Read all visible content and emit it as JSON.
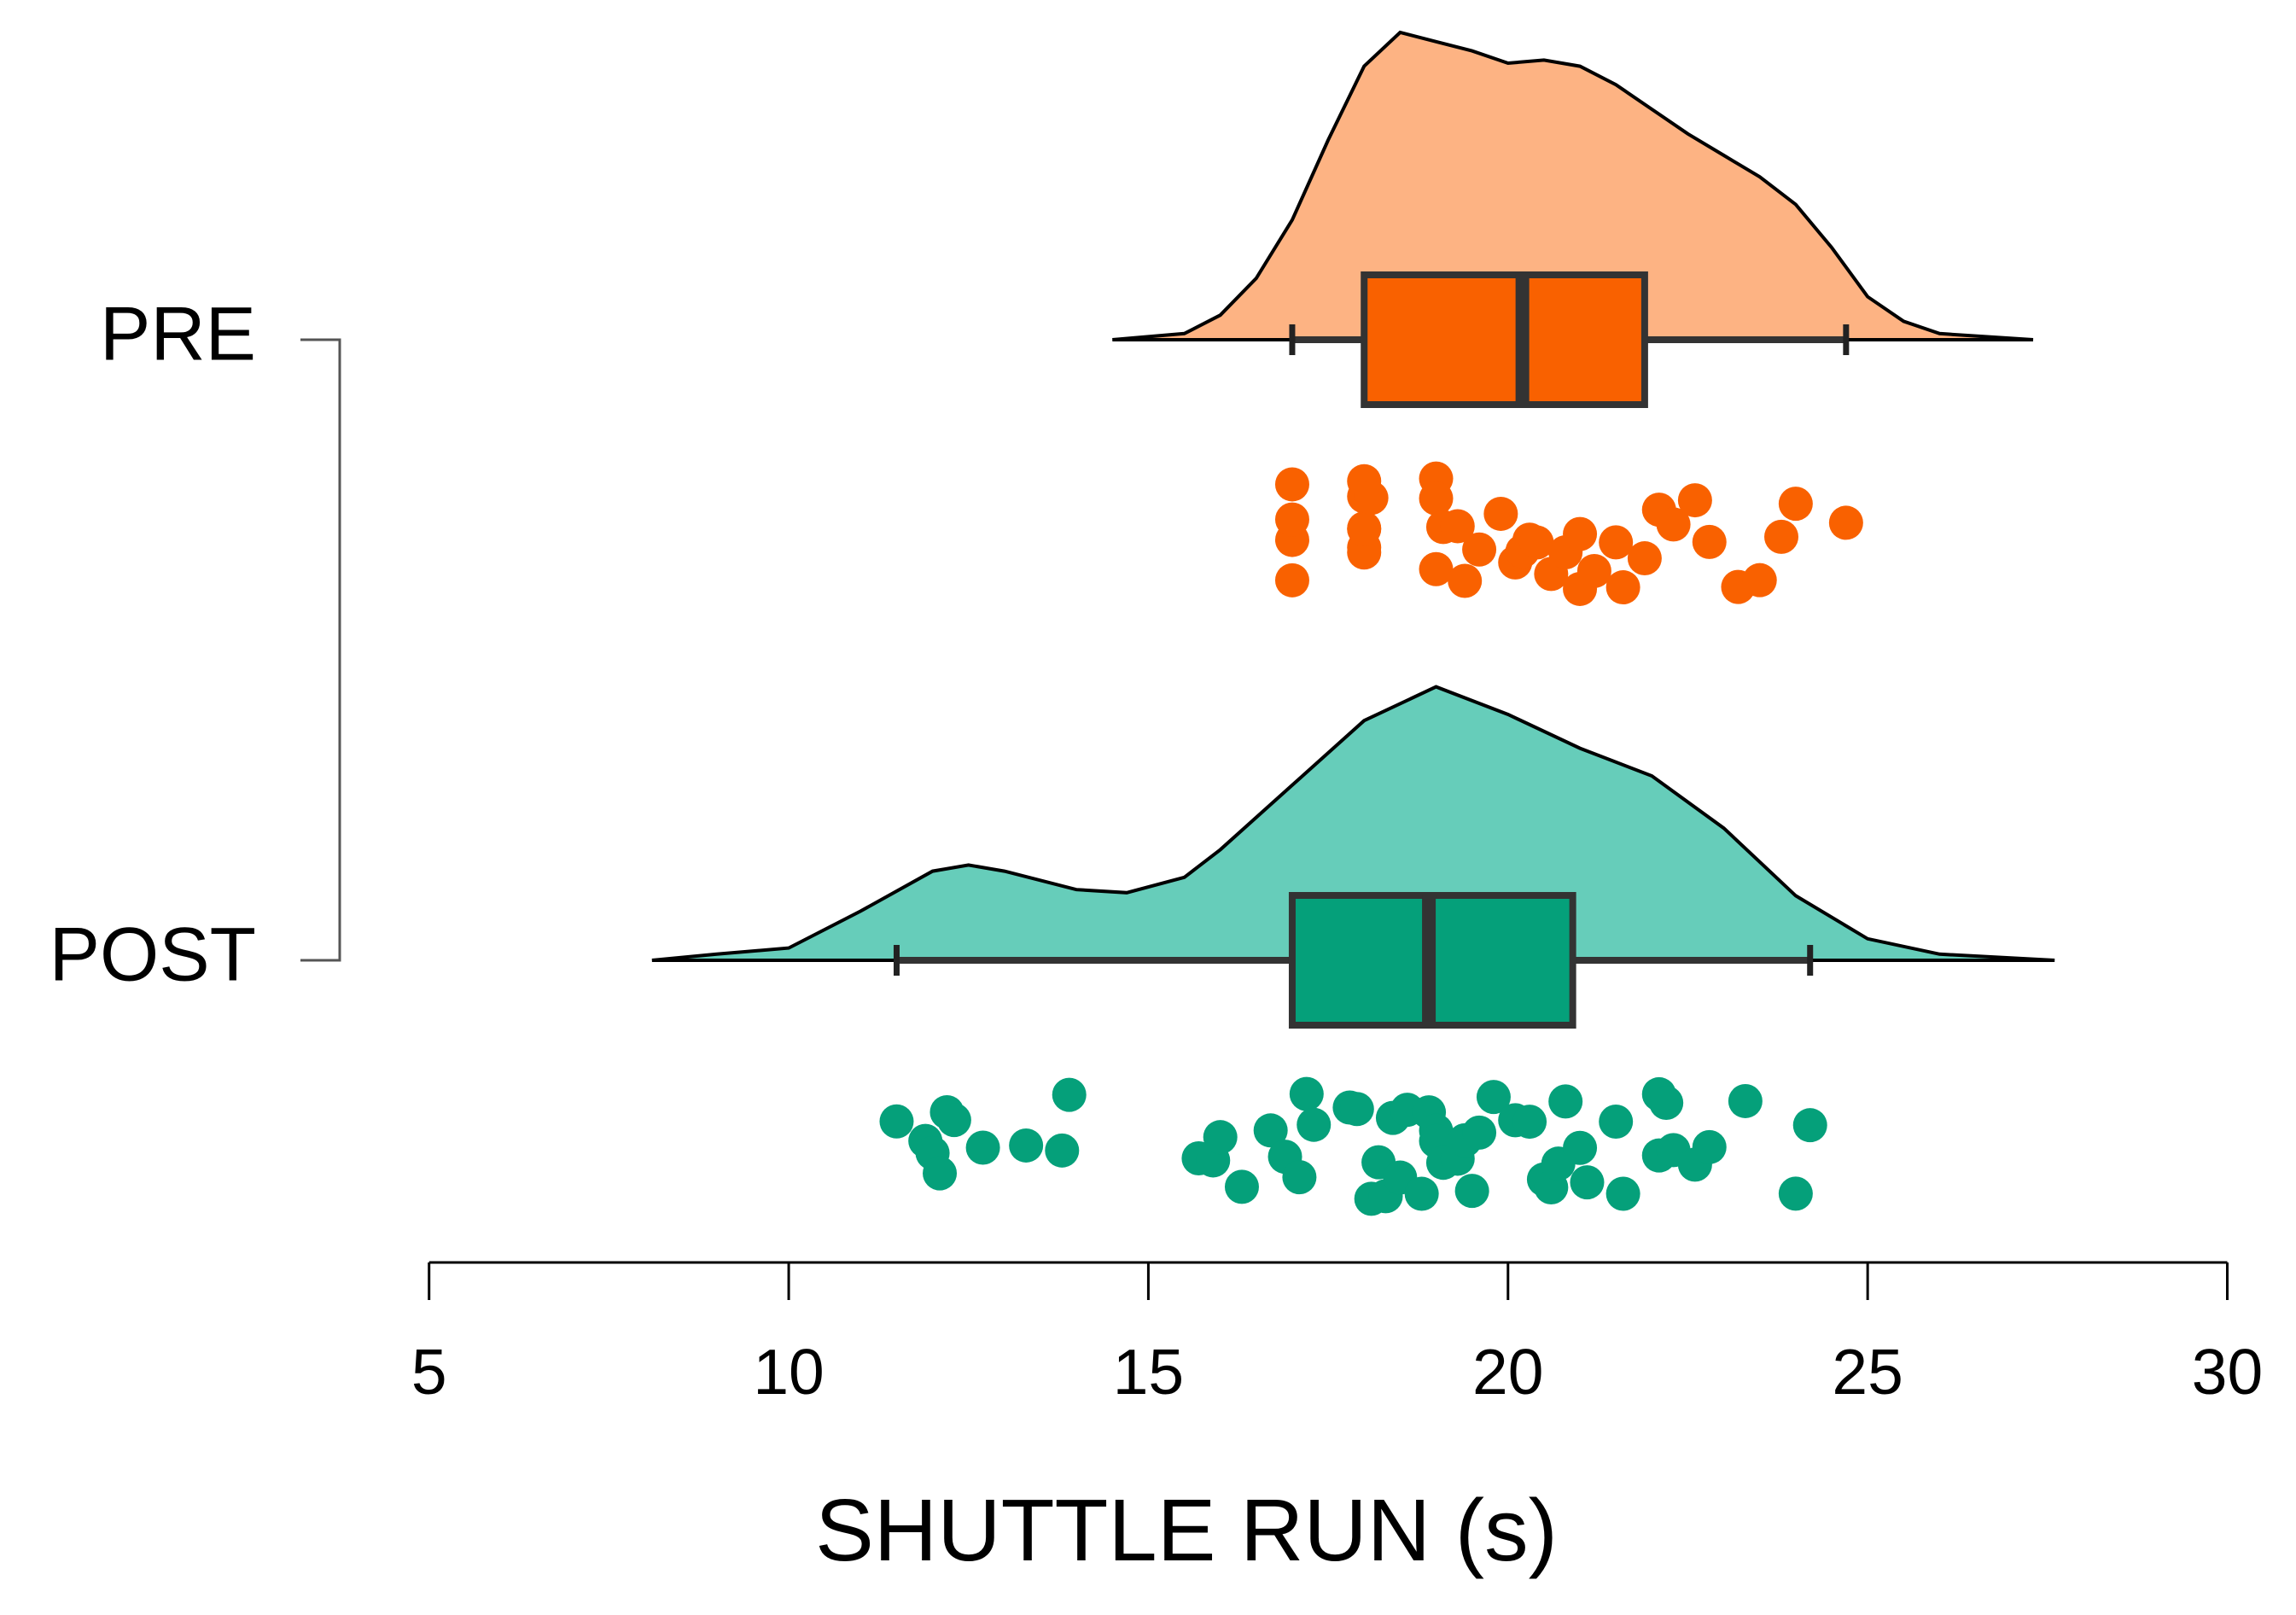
{
  "chart_data": {
    "type": "raincloud",
    "x_label": "SHUTTLE RUN (s)",
    "xlim": [
      5,
      30
    ],
    "xticks": [
      5,
      10,
      15,
      20,
      25,
      30
    ],
    "categories": [
      "PRE",
      "POST"
    ],
    "groups": [
      {
        "fill": "#FDB383",
        "color": "#F96100",
        "box": {
          "min": 17.0,
          "q1": 18.0,
          "median": 20.2,
          "q3": 21.9,
          "max": 24.7
        },
        "density": {
          "x": [
            14.5,
            15.5,
            16,
            16.5,
            17,
            17.5,
            18,
            18.5,
            19,
            19.5,
            20,
            20.5,
            21,
            21.5,
            22,
            22.5,
            23,
            23.5,
            24,
            24.5,
            25,
            25.5,
            26,
            27.3
          ],
          "y": [
            0,
            0.02,
            0.08,
            0.2,
            0.39,
            0.65,
            0.89,
            1.0,
            0.97,
            0.94,
            0.9,
            0.91,
            0.89,
            0.83,
            0.75,
            0.67,
            0.6,
            0.53,
            0.44,
            0.3,
            0.14,
            0.06,
            0.02,
            0
          ]
        },
        "points": [
          17,
          17,
          17,
          17,
          18,
          18,
          18,
          18,
          18,
          18,
          18.1,
          19,
          19,
          19,
          19.1,
          19.4,
          19.3,
          19.6,
          19.9,
          20.1,
          20.3,
          20.2,
          20.4,
          20.6,
          20.8,
          21,
          21,
          21.2,
          21.5,
          21.6,
          21.9,
          22.1,
          22.3,
          22.6,
          22.8,
          23.2,
          23.5,
          23.8,
          24,
          24.7
        ]
      },
      {
        "fill": "#66CDBA",
        "color": "#05A07A",
        "box": {
          "min": 11.5,
          "q1": 17.0,
          "median": 18.9,
          "q3": 20.9,
          "max": 24.2
        },
        "density": {
          "x": [
            8.1,
            9,
            10,
            11,
            12,
            12.5,
            13,
            14,
            14.7,
            15.5,
            16,
            17,
            18,
            19,
            20,
            21,
            22,
            23,
            24,
            25,
            26,
            27.6
          ],
          "y": [
            0,
            0.02,
            0.04,
            0.16,
            0.29,
            0.31,
            0.29,
            0.23,
            0.22,
            0.27,
            0.36,
            0.57,
            0.78,
            0.89,
            0.8,
            0.69,
            0.6,
            0.43,
            0.21,
            0.07,
            0.02,
            0
          ]
        },
        "points": [
          11.5,
          11.9,
          12,
          12.1,
          12.2,
          12.3,
          12.7,
          13.3,
          13.8,
          13.9,
          15.7,
          15.9,
          16,
          16.3,
          16.7,
          16.9,
          17.1,
          17.2,
          17.3,
          17.8,
          17.9,
          18.1,
          18.2,
          18.3,
          18.4,
          18.5,
          18.6,
          18.8,
          18.9,
          19,
          19,
          19.1,
          19.3,
          19.4,
          19.5,
          19.6,
          19.8,
          20.1,
          20.3,
          20.5,
          20.6,
          20.7,
          20.8,
          21,
          21.1,
          21.5,
          21.6,
          22.1,
          22.1,
          22.2,
          22.3,
          22.6,
          22.8,
          23.3,
          24,
          24.2
        ]
      }
    ]
  }
}
